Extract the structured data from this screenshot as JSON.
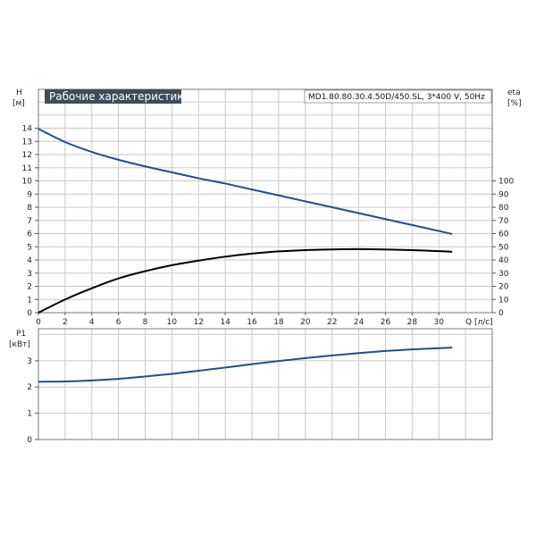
{
  "chart_data": [
    {
      "type": "line",
      "title": "Рабочие характеристики",
      "model_label": "MD1.80.80.30.4.50D/450.SL, 3*400 V, 50Hz",
      "xlabel": "Q [л/с]",
      "ylabel": "H",
      "ylabel_unit": "[м]",
      "y2label": "eta",
      "y2label_unit": "[%]",
      "xlim": [
        0,
        34
      ],
      "ylim": [
        0,
        15
      ],
      "y2lim": [
        0,
        100
      ],
      "x_ticks": [
        "0",
        "2",
        "4",
        "6",
        "8",
        "10",
        "12",
        "14",
        "16",
        "18",
        "20",
        "22",
        "24",
        "26",
        "28",
        "30"
      ],
      "y_ticks": [
        "0",
        "1",
        "2",
        "3",
        "4",
        "5",
        "6",
        "7",
        "8",
        "9",
        "10",
        "11",
        "12",
        "13",
        "14"
      ],
      "y2_ticks": [
        "0",
        "10",
        "20",
        "30",
        "40",
        "50",
        "60",
        "70",
        "80",
        "90",
        "100"
      ],
      "series": [
        {
          "axis": "left",
          "color": "#1f4e8c",
          "x": [
            0,
            2,
            4,
            6,
            8,
            10,
            12,
            14,
            16,
            18,
            20,
            22,
            24,
            26,
            28,
            30,
            31
          ],
          "y": [
            13.95,
            12.95,
            12.2,
            11.6,
            11.1,
            10.65,
            10.2,
            9.8,
            9.35,
            8.9,
            8.45,
            8.0,
            7.55,
            7.1,
            6.65,
            6.2,
            5.97
          ]
        },
        {
          "axis": "right",
          "color": "#000000",
          "x": [
            0,
            2,
            4,
            6,
            8,
            10,
            12,
            14,
            16,
            18,
            20,
            22,
            24,
            26,
            28,
            30,
            31
          ],
          "y": [
            0,
            10,
            18.5,
            26,
            31.5,
            36,
            39.5,
            42.5,
            44.8,
            46.5,
            47.5,
            48,
            48.2,
            48,
            47.5,
            46.7,
            46.2
          ]
        }
      ],
      "grid": true,
      "legend": "none"
    },
    {
      "type": "line",
      "ylabel": "P1",
      "ylabel_unit": "[кВт]",
      "xlim": [
        0,
        34
      ],
      "ylim": [
        0,
        4
      ],
      "y_ticks": [
        "0",
        "1",
        "2",
        "3"
      ],
      "series": [
        {
          "color": "#1f4e8c",
          "x": [
            0,
            2,
            4,
            6,
            8,
            10,
            12,
            14,
            16,
            18,
            20,
            22,
            24,
            26,
            28,
            30,
            31
          ],
          "y": [
            2.2,
            2.21,
            2.25,
            2.31,
            2.4,
            2.5,
            2.62,
            2.74,
            2.87,
            2.99,
            3.1,
            3.2,
            3.29,
            3.37,
            3.43,
            3.48,
            3.5
          ]
        }
      ],
      "grid": true,
      "legend": "none"
    }
  ]
}
